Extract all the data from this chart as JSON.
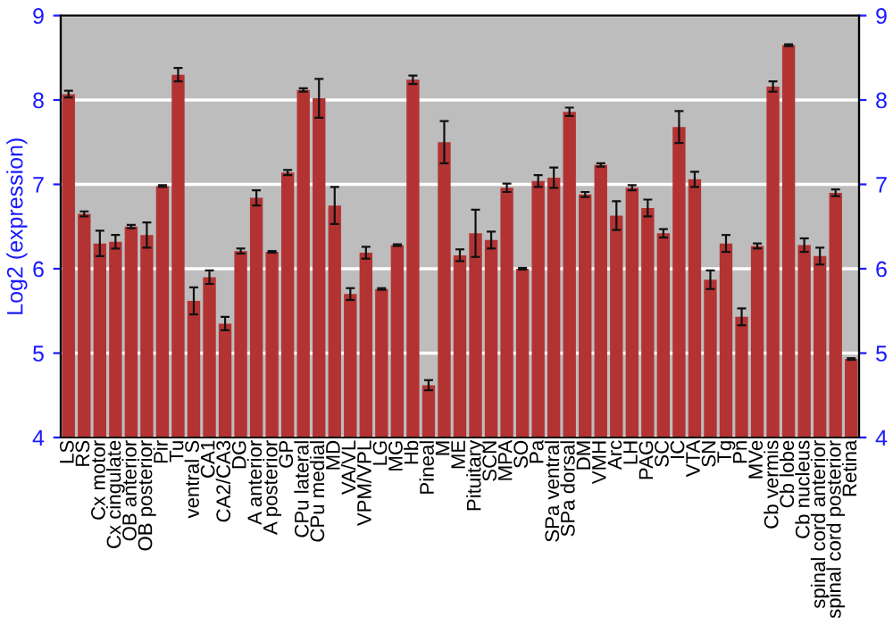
{
  "chart_data": {
    "type": "bar",
    "ylabel": "Log2 (expression)",
    "categories": [
      "LS",
      "RS",
      "Cx motor",
      "Cx cingulate",
      "OB anterior",
      "OB posterior",
      "Pir",
      "Tu",
      "ventral S",
      "CA1",
      "CA2/CA3",
      "DG",
      "A anterior",
      "A posterior",
      "GP",
      "CPu lateral",
      "CPu medial",
      "MD",
      "VA/VL",
      "VPM/VPL",
      "LG",
      "MG",
      "Hb",
      "Pineal",
      "M",
      "ME",
      "Pituitary",
      "SCN",
      "MPA",
      "SO",
      "Pa",
      "SPa ventral",
      "SPa dorsal",
      "DM",
      "VMH",
      "Arc",
      "LH",
      "PAG",
      "SC",
      "IC",
      "VTA",
      "SN",
      "Tg",
      "Pn",
      "MVe",
      "Cb vermis",
      "Cb lobe",
      "Cb nucleus",
      "spinal cord anterior",
      "spinal cord posterior",
      "Retina"
    ],
    "series": [
      {
        "color": "#b33333",
        "values": [
          8.07,
          6.65,
          6.3,
          6.32,
          6.5,
          6.4,
          6.98,
          8.3,
          5.62,
          5.9,
          5.35,
          6.21,
          6.84,
          6.2,
          7.14,
          8.12,
          8.02,
          6.75,
          5.7,
          6.19,
          5.76,
          6.28,
          8.24,
          4.62,
          7.5,
          6.16,
          6.42,
          6.34,
          6.96,
          6.0,
          7.04,
          7.08,
          7.86,
          6.88,
          7.23,
          6.63,
          6.96,
          6.72,
          6.42,
          7.68,
          7.06,
          5.87,
          6.3,
          5.43,
          6.27,
          8.16,
          8.65,
          6.28,
          6.15,
          6.9,
          4.93
        ],
        "errors": [
          0.04,
          0.03,
          0.15,
          0.08,
          0.02,
          0.15,
          0.01,
          0.08,
          0.16,
          0.08,
          0.08,
          0.03,
          0.09,
          0.01,
          0.03,
          0.02,
          0.23,
          0.22,
          0.07,
          0.07,
          0.01,
          0.01,
          0.05,
          0.06,
          0.25,
          0.07,
          0.28,
          0.1,
          0.05,
          0.01,
          0.07,
          0.12,
          0.05,
          0.03,
          0.02,
          0.17,
          0.03,
          0.1,
          0.05,
          0.19,
          0.09,
          0.11,
          0.1,
          0.1,
          0.03,
          0.06,
          0.01,
          0.08,
          0.1,
          0.04,
          0.01
        ]
      }
    ],
    "ylim": [
      4,
      9
    ],
    "yticks": [
      4,
      5,
      6,
      7,
      8,
      9
    ],
    "y2lim": [
      4,
      9
    ],
    "y2ticks": [
      4,
      5,
      6,
      7,
      8,
      9
    ],
    "grid": "y"
  }
}
